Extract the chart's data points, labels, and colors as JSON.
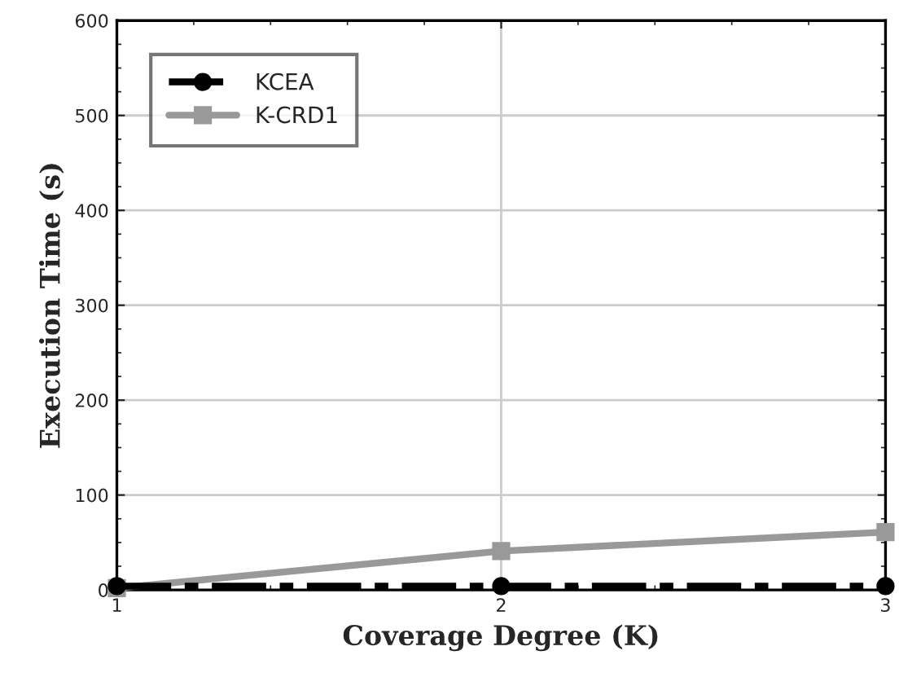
{
  "chart_data": {
    "type": "line",
    "xlabel": "Coverage Degree (K)",
    "ylabel": "Execution Time (s)",
    "x": [
      1,
      2,
      3
    ],
    "xlim": [
      1,
      3
    ],
    "xticks": [
      1,
      2,
      3
    ],
    "ylim": [
      0,
      600
    ],
    "yticks": [
      0,
      100,
      200,
      300,
      400,
      500,
      600
    ],
    "grid": true,
    "legend": "top left",
    "series": [
      {
        "name": "KCEA",
        "color": "#000000",
        "values": [
          4,
          4,
          4
        ],
        "marker": "circle",
        "line_style": "dashdot"
      },
      {
        "name": "K-CRD1",
        "color": "#999999",
        "values": [
          2,
          41,
          61
        ],
        "marker": "square",
        "line_style": "solid"
      }
    ]
  }
}
